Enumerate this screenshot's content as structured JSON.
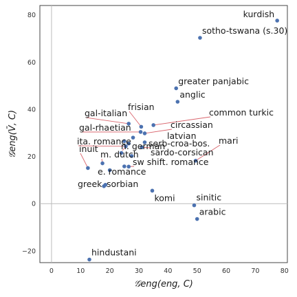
{
  "chart_data": {
    "type": "scatter",
    "title": "",
    "xlabel": "𝒢eng(eng, C)",
    "ylabel": "𝒢eng(V̄, C)",
    "xlim": [
      -4,
      81
    ],
    "ylim": [
      -25,
      84
    ],
    "xticks": [
      0,
      10,
      20,
      30,
      40,
      50,
      60,
      70,
      80
    ],
    "yticks": [
      -20,
      0,
      20,
      40,
      60,
      80
    ],
    "grid": false,
    "reference_lines": {
      "x": 0,
      "y": 0
    },
    "point_color": "#4c72b0",
    "leader_color": "#d9646c",
    "points": [
      {
        "label": "kurdish",
        "x": 77.5,
        "y": 77.6
      },
      {
        "label": "sotho-tswana (s.30)",
        "x": 51.0,
        "y": 70.3
      },
      {
        "label": "greater panjabic",
        "x": 42.8,
        "y": 48.9
      },
      {
        "label": "anglic",
        "x": 43.3,
        "y": 43.2
      },
      {
        "label": "frisian",
        "x": 30.8,
        "y": 32.6
      },
      {
        "label": "common turkic",
        "x": 35.0,
        "y": 33.3
      },
      {
        "label": "gal-italian",
        "x": 26.5,
        "y": 33.9
      },
      {
        "label": "circassian",
        "x": 32.0,
        "y": 29.8
      },
      {
        "label": "gal-rhaetian",
        "x": 30.6,
        "y": 30.4
      },
      {
        "label": "latvian",
        "x": 28.0,
        "y": 28.0
      },
      {
        "label": "ita. romance",
        "x": 25.5,
        "y": 24.3
      },
      {
        "label": "n. german",
        "x": 26.5,
        "y": 25.5
      },
      {
        "label": "serb-croa-bos.",
        "x": 31.0,
        "y": 23.9
      },
      {
        "label": "mari",
        "x": 49.5,
        "y": 18.2
      },
      {
        "label": "sardo-corsican",
        "x": 27.5,
        "y": 20.2
      },
      {
        "label": "inuit",
        "x": 12.5,
        "y": 15.1
      },
      {
        "label": "m. dutch",
        "x": 17.5,
        "y": 17.1
      },
      {
        "label": "sw shift. romance",
        "x": 26.5,
        "y": 15.7
      },
      {
        "label": "e. romance",
        "x": 20.0,
        "y": 14.2
      },
      {
        "label": "sorbian",
        "x": 18.5,
        "y": 8.0
      },
      {
        "label": "greek",
        "x": 18.0,
        "y": 7.4
      },
      {
        "label": "komi",
        "x": 34.6,
        "y": 5.5
      },
      {
        "label": "sinitic",
        "x": 49.0,
        "y": -0.7
      },
      {
        "label": "arabic",
        "x": 50.0,
        "y": -6.5
      },
      {
        "label": "hindustani",
        "x": 13.0,
        "y": -23.7
      },
      {
        "label": "",
        "x": 25.0,
        "y": 15.8
      },
      {
        "label": "",
        "x": 32.0,
        "y": 26.0
      },
      {
        "label": "",
        "x": 25.0,
        "y": 26.5
      },
      {
        "label": "",
        "x": 24.0,
        "y": 21.5
      }
    ]
  }
}
